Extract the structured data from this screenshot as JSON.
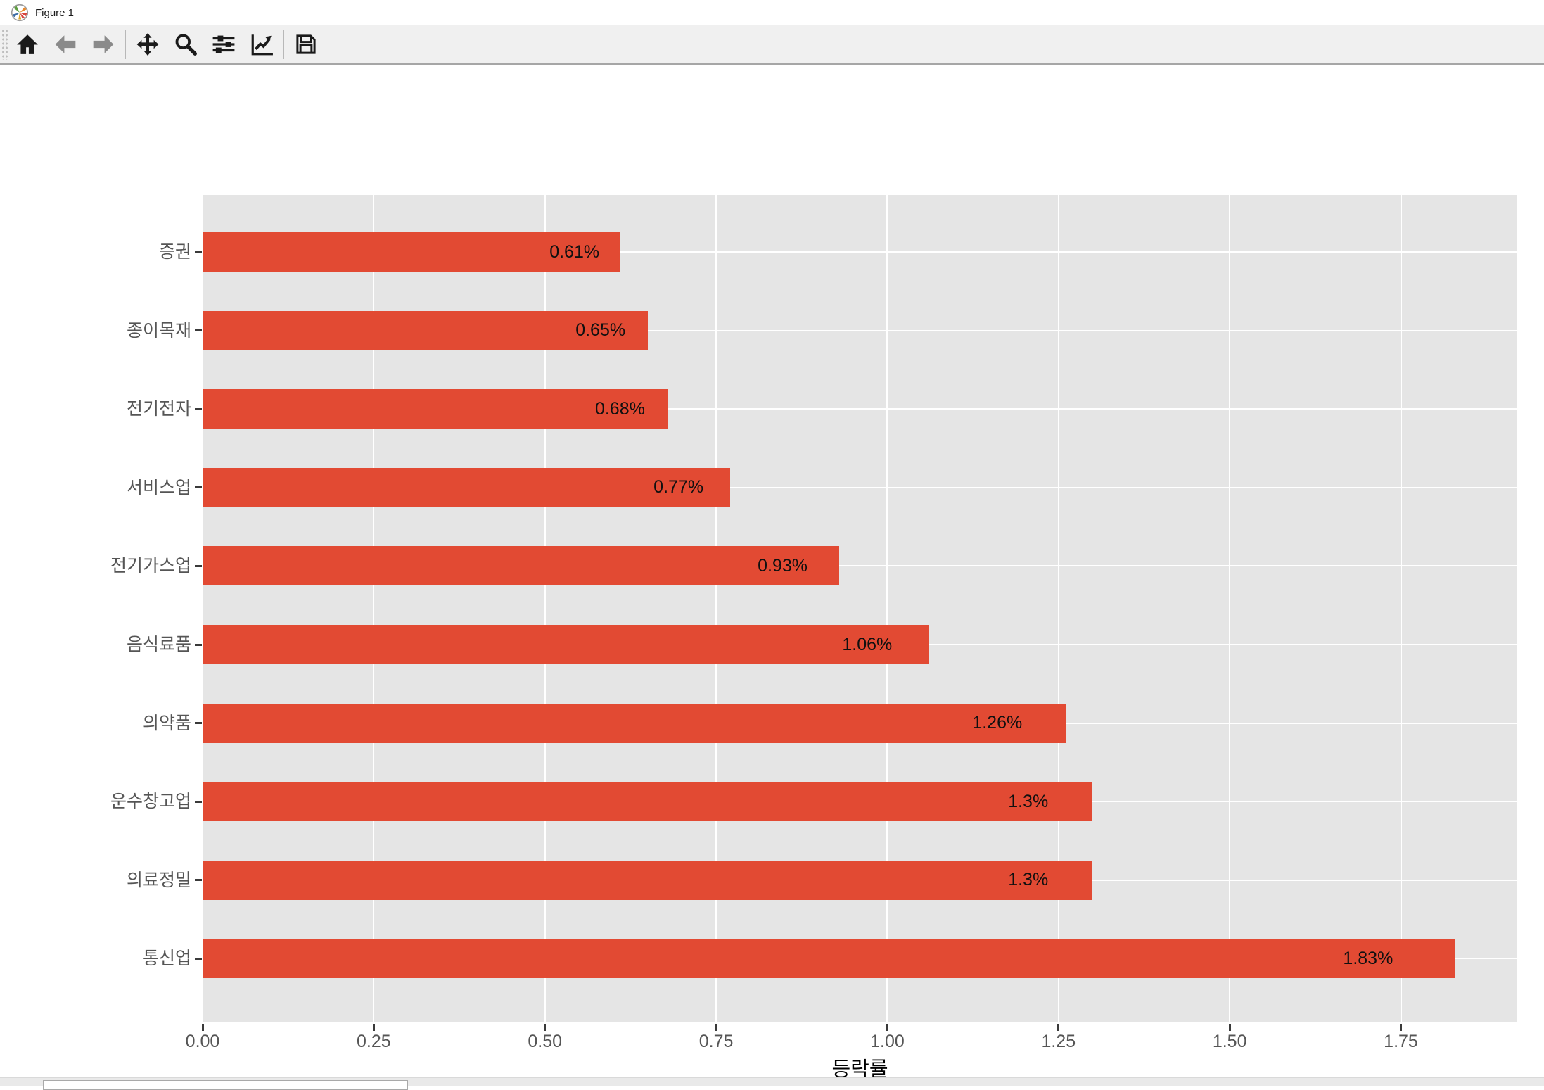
{
  "window": {
    "title": "Figure 1"
  },
  "toolbar": {
    "groups": [
      [
        {
          "name": "home",
          "icon": "home-icon",
          "disabled": false
        },
        {
          "name": "back",
          "icon": "arrow-left-icon",
          "disabled": true
        },
        {
          "name": "forward",
          "icon": "arrow-right-icon",
          "disabled": true
        }
      ],
      [
        {
          "name": "pan",
          "icon": "move-icon",
          "disabled": false
        },
        {
          "name": "zoom",
          "icon": "magnifier-icon",
          "disabled": false
        },
        {
          "name": "configure-subplots",
          "icon": "sliders-icon",
          "disabled": false
        },
        {
          "name": "customize-figure",
          "icon": "chart-line-icon",
          "disabled": false
        }
      ],
      [
        {
          "name": "save",
          "icon": "floppy-icon",
          "disabled": false
        }
      ]
    ]
  },
  "chart_data": {
    "type": "bar",
    "orientation": "horizontal",
    "title": "",
    "xlabel": "등락률",
    "ylabel": "",
    "categories": [
      "증권",
      "종이목재",
      "전기전자",
      "서비스업",
      "전기가스업",
      "음식료품",
      "의약품",
      "운수창고업",
      "의료정밀",
      "통신업"
    ],
    "values": [
      0.61,
      0.65,
      0.68,
      0.77,
      0.93,
      1.06,
      1.26,
      1.3,
      1.3,
      1.83
    ],
    "bar_labels": [
      "0.61%",
      "0.65%",
      "0.68%",
      "0.77%",
      "0.93%",
      "1.06%",
      "1.26%",
      "1.3%",
      "1.3%",
      "1.83%"
    ],
    "x_ticks": [
      "0.00",
      "0.25",
      "0.50",
      "0.75",
      "1.00",
      "1.25",
      "1.50",
      "1.75"
    ],
    "x_tick_values": [
      0,
      0.25,
      0.5,
      0.75,
      1.0,
      1.25,
      1.5,
      1.75
    ],
    "xlim": [
      0,
      1.92
    ],
    "grid": true,
    "legend": false,
    "style": "ggplot",
    "colors": {
      "bar": "#E24A33",
      "plot_background": "#E5E5E5",
      "gridline": "#FFFFFF",
      "tick_label": "#555555",
      "tick_mark": "#3a3a3a",
      "value_label": "#101010"
    }
  }
}
